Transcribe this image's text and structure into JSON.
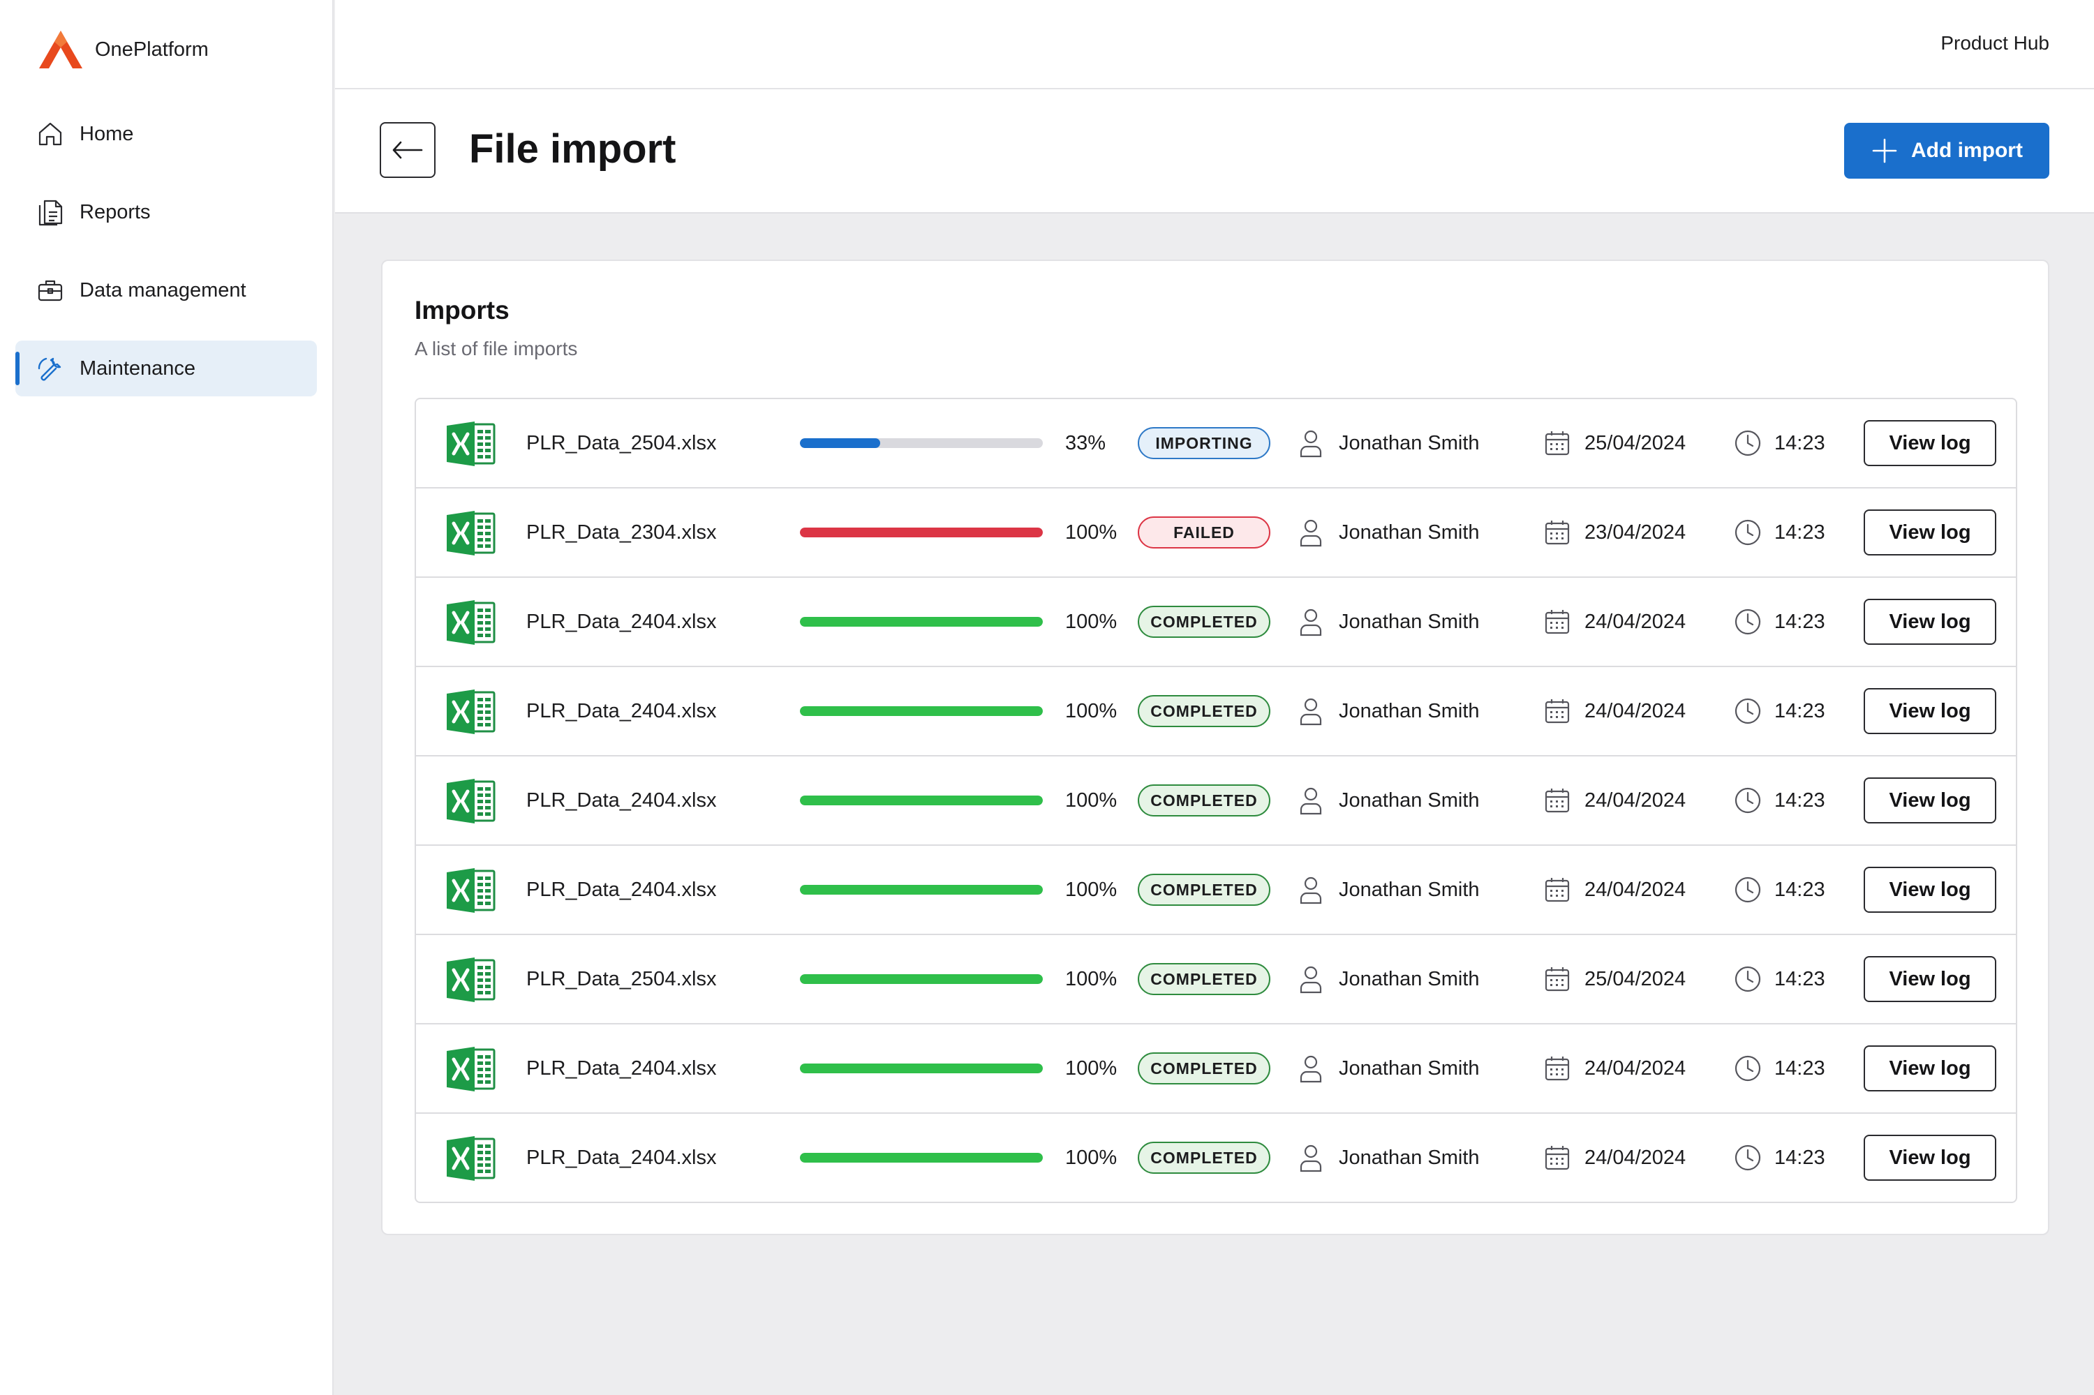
{
  "brand": {
    "name": "OnePlatform",
    "logo_color": "#e8491d"
  },
  "topbar": {
    "context_label": "Product Hub"
  },
  "sidebar": {
    "items": [
      {
        "label": "Home",
        "icon": "home-icon",
        "active": false
      },
      {
        "label": "Reports",
        "icon": "reports-icon",
        "active": false
      },
      {
        "label": "Data management",
        "icon": "briefcase-icon",
        "active": false
      },
      {
        "label": "Maintenance",
        "icon": "wrench-icon",
        "active": true
      }
    ]
  },
  "header": {
    "title": "File import",
    "add_button_label": "Add import"
  },
  "imports": {
    "title": "Imports",
    "subtitle": "A list of file imports",
    "view_log_label": "View log",
    "rows": [
      {
        "file": "PLR_Data_2504.xlsx",
        "progress": 33,
        "progress_label": "33%",
        "status": "IMPORTING",
        "status_key": "importing",
        "bar_color": "#1a6fcc",
        "user": "Jonathan Smith",
        "date": "25/04/2024",
        "time": "14:23"
      },
      {
        "file": "PLR_Data_2304.xlsx",
        "progress": 100,
        "progress_label": "100%",
        "status": "FAILED",
        "status_key": "failed",
        "bar_color": "#dc3545",
        "user": "Jonathan Smith",
        "date": "23/04/2024",
        "time": "14:23"
      },
      {
        "file": "PLR_Data_2404.xlsx",
        "progress": 100,
        "progress_label": "100%",
        "status": "COMPLETED",
        "status_key": "completed",
        "bar_color": "#2fbf4a",
        "user": "Jonathan Smith",
        "date": "24/04/2024",
        "time": "14:23"
      },
      {
        "file": "PLR_Data_2404.xlsx",
        "progress": 100,
        "progress_label": "100%",
        "status": "COMPLETED",
        "status_key": "completed",
        "bar_color": "#2fbf4a",
        "user": "Jonathan Smith",
        "date": "24/04/2024",
        "time": "14:23"
      },
      {
        "file": "PLR_Data_2404.xlsx",
        "progress": 100,
        "progress_label": "100%",
        "status": "COMPLETED",
        "status_key": "completed",
        "bar_color": "#2fbf4a",
        "user": "Jonathan Smith",
        "date": "24/04/2024",
        "time": "14:23"
      },
      {
        "file": "PLR_Data_2404.xlsx",
        "progress": 100,
        "progress_label": "100%",
        "status": "COMPLETED",
        "status_key": "completed",
        "bar_color": "#2fbf4a",
        "user": "Jonathan Smith",
        "date": "24/04/2024",
        "time": "14:23"
      },
      {
        "file": "PLR_Data_2504.xlsx",
        "progress": 100,
        "progress_label": "100%",
        "status": "COMPLETED",
        "status_key": "completed",
        "bar_color": "#2fbf4a",
        "user": "Jonathan Smith",
        "date": "25/04/2024",
        "time": "14:23"
      },
      {
        "file": "PLR_Data_2404.xlsx",
        "progress": 100,
        "progress_label": "100%",
        "status": "COMPLETED",
        "status_key": "completed",
        "bar_color": "#2fbf4a",
        "user": "Jonathan Smith",
        "date": "24/04/2024",
        "time": "14:23"
      },
      {
        "file": "PLR_Data_2404.xlsx",
        "progress": 100,
        "progress_label": "100%",
        "status": "COMPLETED",
        "status_key": "completed",
        "bar_color": "#2fbf4a",
        "user": "Jonathan Smith",
        "date": "24/04/2024",
        "time": "14:23"
      }
    ]
  }
}
